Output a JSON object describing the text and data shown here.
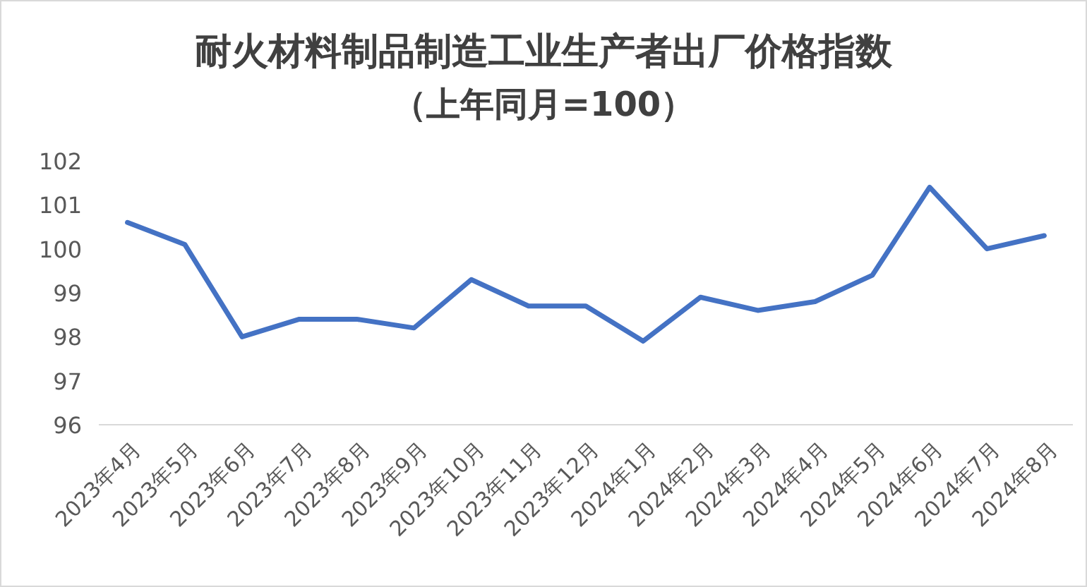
{
  "chart_data": {
    "type": "line",
    "title": "耐火材料制品制造工业生产者出厂价格指数",
    "subtitle": "（上年同月=100）",
    "categories": [
      "2023年4月",
      "2023年5月",
      "2023年6月",
      "2023年7月",
      "2023年8月",
      "2023年9月",
      "2023年10月",
      "2023年11月",
      "2023年12月",
      "2024年1月",
      "2024年2月",
      "2024年3月",
      "2024年4月",
      "2024年5月",
      "2024年6月",
      "2024年7月",
      "2024年8月"
    ],
    "series": [
      {
        "color": "#4472c4",
        "values": [
          100.6,
          100.1,
          98.0,
          98.4,
          98.4,
          98.2,
          99.3,
          98.7,
          98.7,
          97.9,
          98.9,
          98.6,
          98.8,
          99.4,
          101.4,
          100.0,
          100.3
        ]
      }
    ],
    "ylim": [
      96,
      102
    ],
    "yticks": [
      96,
      97,
      98,
      99,
      100,
      101,
      102
    ],
    "grid": false,
    "marker": "none",
    "line_style": "solid"
  }
}
